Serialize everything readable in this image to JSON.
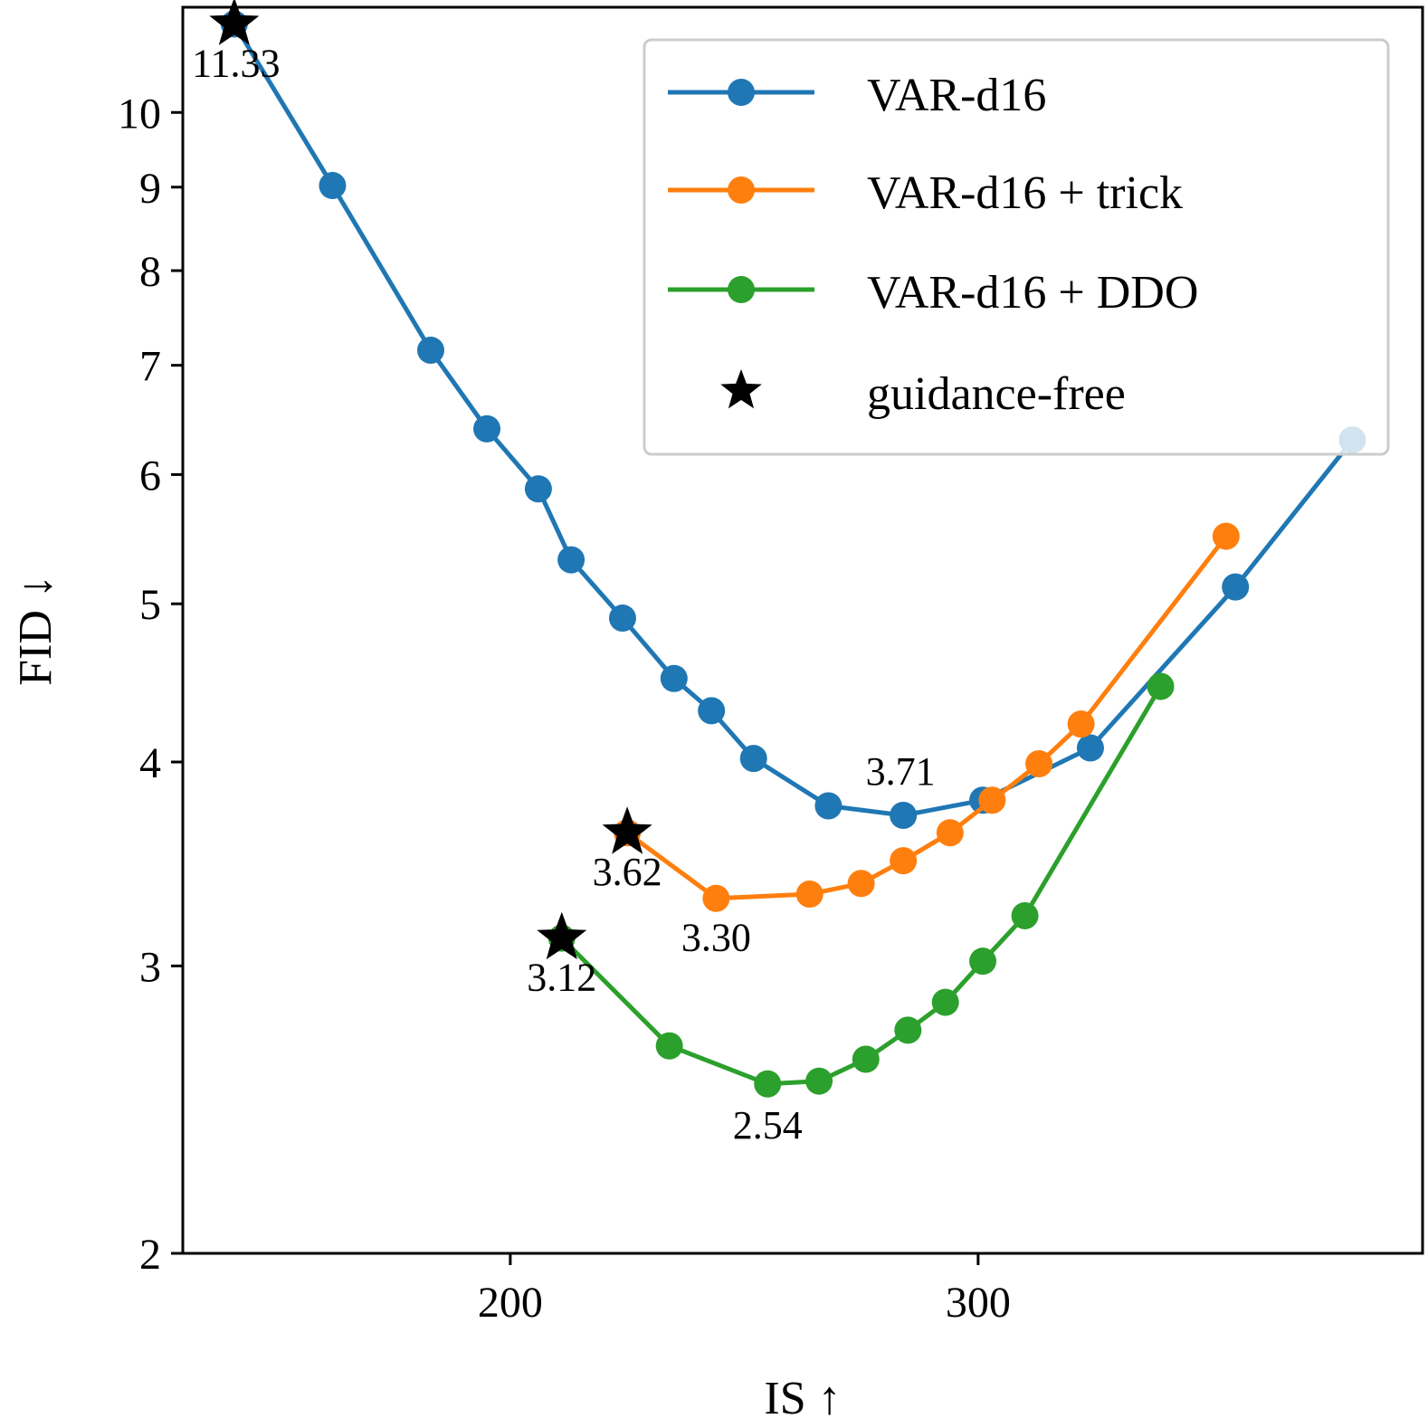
{
  "chart_data": {
    "type": "line",
    "xlabel": "IS ↑",
    "ylabel": "FID ↓",
    "xlim": [
      130,
      395
    ],
    "ylim": [
      2,
      11.6
    ],
    "y_scale": "log",
    "grid": false,
    "legend_position": "top-right",
    "x_ticks": [
      200,
      300
    ],
    "x_tick_labels": [
      "200",
      "300"
    ],
    "y_ticks": [
      2,
      3,
      4,
      5,
      6,
      7,
      8,
      9,
      10
    ],
    "y_tick_labels": [
      "2",
      "3",
      "4",
      "5",
      "6",
      "7",
      "8",
      "9",
      "10"
    ],
    "series": [
      {
        "name": "VAR-d16",
        "color": "#1f77b4",
        "points": [
          [
            141,
            11.33
          ],
          [
            162,
            9.02
          ],
          [
            183,
            7.15
          ],
          [
            195,
            6.4
          ],
          [
            206,
            5.88
          ],
          [
            213,
            5.32
          ],
          [
            224,
            4.9
          ],
          [
            235,
            4.5
          ],
          [
            243,
            4.3
          ],
          [
            252,
            4.02
          ],
          [
            268,
            3.76
          ],
          [
            284,
            3.71
          ],
          [
            301,
            3.79
          ],
          [
            324,
            4.08
          ],
          [
            355,
            5.12
          ],
          [
            380,
            6.3
          ]
        ]
      },
      {
        "name": "VAR-d16 + trick",
        "color": "#ff7f0e",
        "points": [
          [
            225,
            3.62
          ],
          [
            244,
            3.3
          ],
          [
            264,
            3.32
          ],
          [
            275,
            3.37
          ],
          [
            284,
            3.48
          ],
          [
            294,
            3.62
          ],
          [
            303,
            3.79
          ],
          [
            313,
            3.99
          ],
          [
            322,
            4.22
          ],
          [
            353,
            5.5
          ]
        ]
      },
      {
        "name": "VAR-d16 + DDO",
        "color": "#2ca02c",
        "points": [
          [
            211,
            3.12
          ],
          [
            234,
            2.68
          ],
          [
            255,
            2.54
          ],
          [
            266,
            2.55
          ],
          [
            276,
            2.63
          ],
          [
            285,
            2.74
          ],
          [
            293,
            2.85
          ],
          [
            301,
            3.02
          ],
          [
            310,
            3.22
          ],
          [
            339,
            4.45
          ]
        ]
      }
    ],
    "guidance_free": {
      "legend_label": "guidance-free",
      "points": [
        {
          "x": 141,
          "y": 11.33,
          "label": "11.33"
        },
        {
          "x": 225,
          "y": 3.62,
          "label": "3.62"
        },
        {
          "x": 211,
          "y": 3.12,
          "label": "3.12"
        }
      ]
    },
    "annotations": [
      {
        "text": "11.33",
        "x": 141,
        "y": 11.33
      },
      {
        "text": "3.71",
        "x": 284,
        "y": 3.71
      },
      {
        "text": "3.62",
        "x": 225,
        "y": 3.62
      },
      {
        "text": "3.30",
        "x": 244,
        "y": 3.3
      },
      {
        "text": "3.12",
        "x": 211,
        "y": 3.12
      },
      {
        "text": "2.54",
        "x": 255,
        "y": 2.54
      }
    ],
    "legend": [
      "VAR-d16",
      "VAR-d16 + trick",
      "VAR-d16 + DDO",
      "guidance-free"
    ]
  }
}
